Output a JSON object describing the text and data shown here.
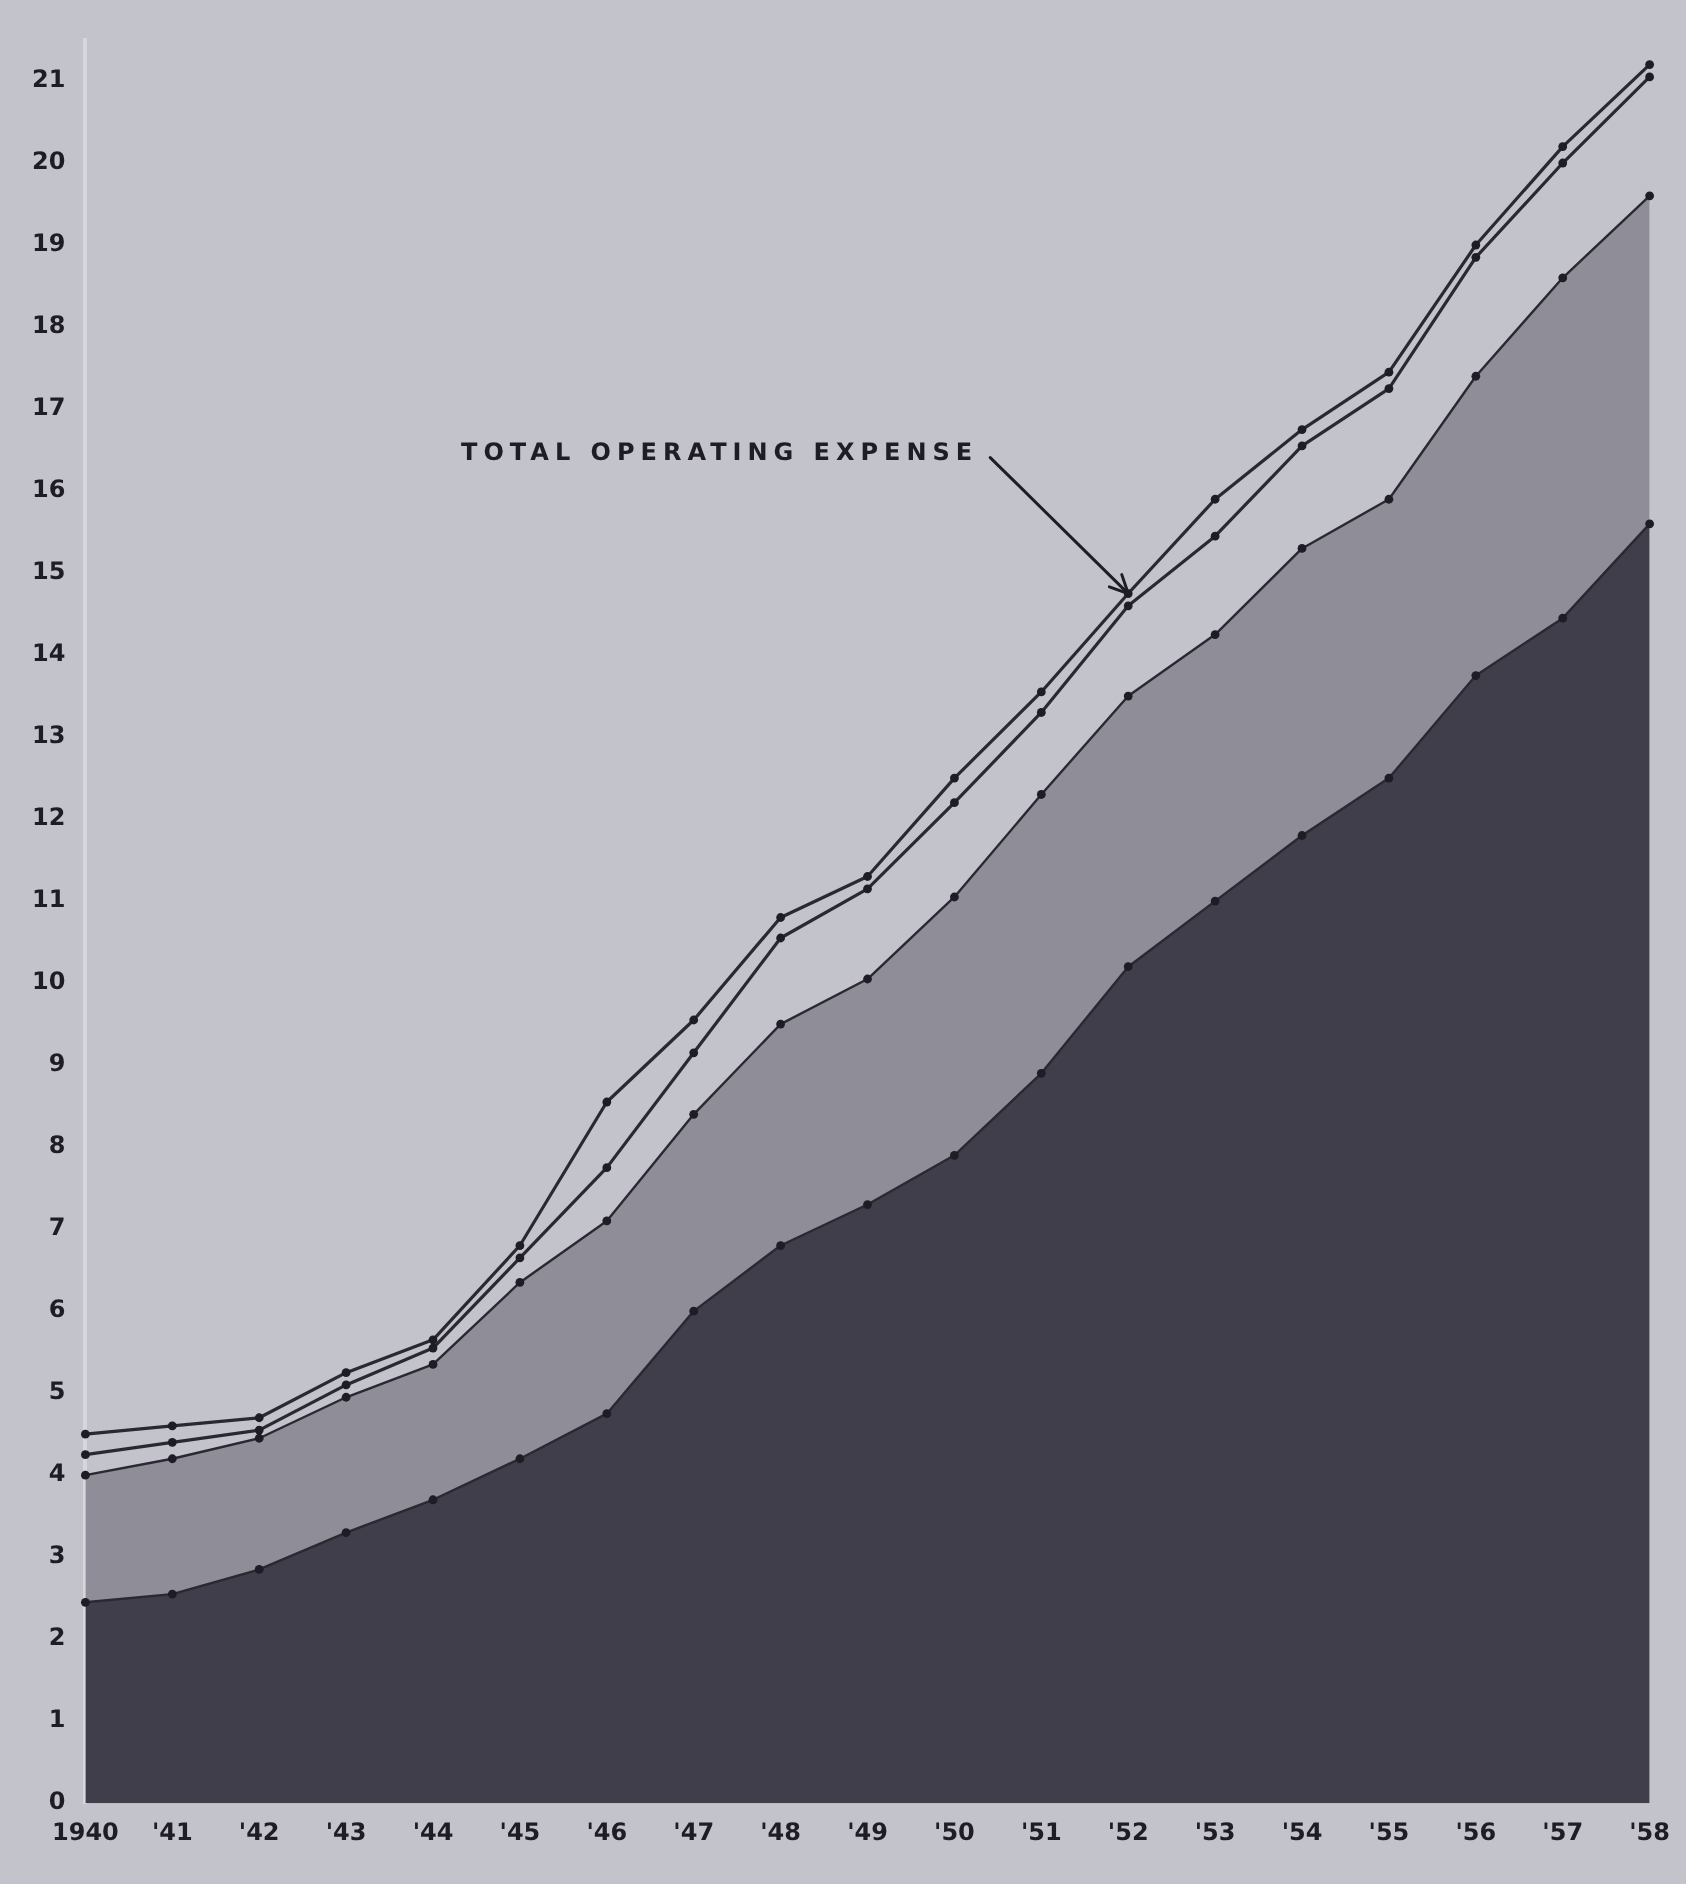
{
  "chart_data": {
    "type": "line",
    "categories": [
      "1940",
      "'41",
      "'42",
      "'43",
      "'44",
      "'45",
      "'46",
      "'47",
      "'48",
      "'49",
      "'50",
      "'51",
      "'52",
      "'53",
      "'54",
      "'55",
      "'56",
      "'57",
      "'58"
    ],
    "series": [
      {
        "type": "area",
        "color": "#403e4a",
        "values": [
          2.45,
          2.55,
          2.85,
          3.3,
          3.7,
          4.2,
          4.75,
          6.0,
          6.8,
          7.3,
          7.9,
          8.9,
          10.2,
          11.0,
          11.8,
          12.5,
          13.75,
          14.45,
          15.6
        ]
      },
      {
        "type": "area",
        "color": "#8e8d98",
        "values": [
          4.0,
          4.2,
          4.45,
          4.95,
          5.35,
          6.35,
          7.1,
          8.4,
          9.5,
          10.05,
          11.05,
          12.3,
          13.5,
          14.25,
          15.3,
          15.9,
          17.4,
          18.6,
          19.6
        ]
      },
      {
        "type": "line",
        "color": "#2a2830",
        "values": [
          4.25,
          4.4,
          4.55,
          5.1,
          5.55,
          6.65,
          7.75,
          9.15,
          10.55,
          11.15,
          12.2,
          13.3,
          14.6,
          15.45,
          16.55,
          17.25,
          18.85,
          20.0,
          21.05
        ]
      },
      {
        "type": "line",
        "color": "#2a2830",
        "values": [
          4.5,
          4.6,
          4.7,
          5.25,
          5.65,
          6.8,
          8.55,
          9.55,
          10.8,
          11.3,
          12.5,
          13.55,
          14.75,
          15.9,
          16.75,
          17.45,
          19.0,
          20.2,
          21.2
        ]
      }
    ],
    "ylim": [
      0,
      21.5
    ],
    "yticks": [
      0,
      1,
      2,
      3,
      4,
      5,
      6,
      7,
      8,
      9,
      10,
      11,
      12,
      13,
      14,
      15,
      16,
      17,
      18,
      19,
      20,
      21
    ],
    "grid": false,
    "legend": false,
    "marker": "circle",
    "line_style": "solid",
    "annotations": [
      {
        "text": "TOTAL OPERATING EXPENSE",
        "x": "'52",
        "y": 14.75
      }
    ]
  }
}
